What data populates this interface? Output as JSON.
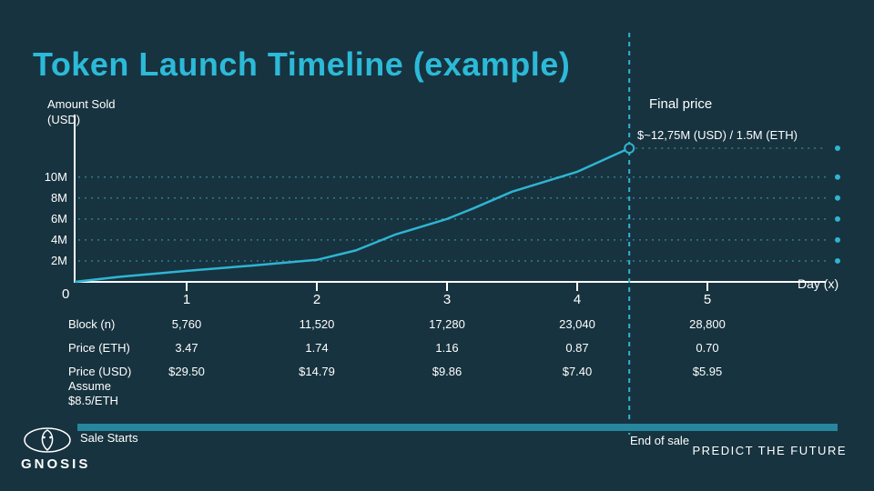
{
  "title": "Token Launch Timeline (example)",
  "colors": {
    "background": "#17333F",
    "title_cyan": "#2CBAD8",
    "accent_cyan": "#2FB4D2",
    "bar_teal": "#26869E",
    "text": "#FFFFFF"
  },
  "chart_data": {
    "type": "line",
    "title": "Token Launch Timeline (example)",
    "xlabel": "Day (x)",
    "ylabel": "Amount Sold (USD)",
    "ylabel_line1": "Amount Sold",
    "ylabel_line2": "(USD)",
    "xlim": [
      0,
      5.9
    ],
    "ylim": [
      0,
      13.5
    ],
    "grid": "dotted-horizontal",
    "legend": "none",
    "origin_label": "0",
    "yticks": [
      {
        "value": 10,
        "label": "10M"
      },
      {
        "value": 8,
        "label": "8M"
      },
      {
        "value": 6,
        "label": "6M"
      },
      {
        "value": 4,
        "label": "4M"
      },
      {
        "value": 2,
        "label": "2M"
      }
    ],
    "xticks": [
      {
        "value": 1,
        "label": "1"
      },
      {
        "value": 2,
        "label": "2"
      },
      {
        "value": 3,
        "label": "3"
      },
      {
        "value": 4,
        "label": "4"
      },
      {
        "value": 5,
        "label": "5"
      }
    ],
    "series": [
      {
        "name": "Amount Sold (USD, millions)",
        "points": [
          [
            0,
            0
          ],
          [
            0.5,
            0.5
          ],
          [
            1,
            1.05
          ],
          [
            1.5,
            1.55
          ],
          [
            2,
            2.1
          ],
          [
            2.3,
            3.0
          ],
          [
            2.6,
            4.5
          ],
          [
            3,
            6.0
          ],
          [
            3.2,
            7.0
          ],
          [
            3.5,
            8.6
          ],
          [
            4,
            10.5
          ],
          [
            4.4,
            12.75
          ]
        ]
      }
    ],
    "end_of_sale_x": 4.4,
    "final_value_musd": 12.75,
    "final_price": {
      "label": "Final price",
      "value": "$~12,75M (USD) / 1.5M (ETH)"
    }
  },
  "table": {
    "rows": [
      {
        "label": "Block (n)",
        "values": [
          "5,760",
          "11,520",
          "17,280",
          "23,040",
          "28,800"
        ]
      },
      {
        "label": "Price (ETH)",
        "values": [
          "3.47",
          "1.74",
          "1.16",
          "0.87",
          "0.70"
        ]
      },
      {
        "label": "Price (USD)",
        "label_line2": "Assume",
        "label_line3": "$8.5/ETH",
        "values": [
          "$29.50",
          "$14.79",
          "$9.86",
          "$7.40",
          "$5.95"
        ]
      }
    ]
  },
  "footer": {
    "sale_starts": "Sale Starts",
    "end_of_sale": "End of sale",
    "tagline": "PREDICT THE FUTURE",
    "brand": "GNOSIS"
  }
}
